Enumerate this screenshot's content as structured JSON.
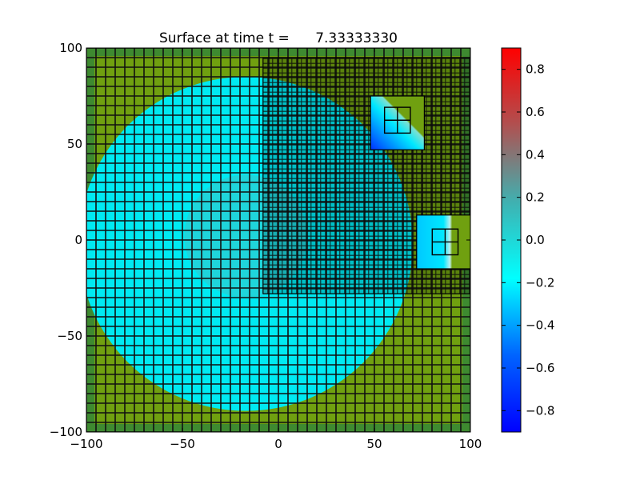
{
  "chart_data": {
    "type": "heatmap",
    "title": "Surface at time t =      7.33333330",
    "xlabel": "",
    "ylabel": "",
    "xlim": [
      -100,
      100
    ],
    "ylim": [
      -100,
      100
    ],
    "x_ticks": [
      -100,
      -50,
      0,
      50,
      100
    ],
    "y_ticks": [
      -100,
      -50,
      0,
      50,
      100
    ],
    "x_tick_labels": [
      "−100",
      "−50",
      "0",
      "50",
      "100"
    ],
    "y_tick_labels": [
      "−100",
      "−50",
      "0",
      "50",
      "100"
    ],
    "grid": false,
    "cells_shown": true,
    "background_color": "#70a010",
    "outer_band_color": "#3e8a30",
    "colorbar": {
      "vmin": -0.9,
      "vmax": 0.9,
      "ticks": [
        0.8,
        0.6,
        0.4,
        0.2,
        0.0,
        -0.2,
        -0.4,
        -0.6,
        -0.8
      ],
      "tick_labels": [
        "0.8",
        "0.6",
        "0.4",
        "0.2",
        "0.0",
        "−0.2",
        "−0.4",
        "−0.6",
        "−0.8"
      ],
      "colormap_stops": [
        "#0000ff",
        "#0064ff",
        "#00ffff",
        "#40b0b0",
        "#b05050",
        "#ff0000"
      ]
    },
    "regions": [
      {
        "name": "disk",
        "shape": "circle",
        "center": [
          -17,
          -2
        ],
        "radius": 87,
        "value": -0.08,
        "color": "#00eaf2"
      },
      {
        "name": "center-disk",
        "shape": "circle",
        "center": [
          -17,
          2
        ],
        "radius": 32,
        "value": 0.12,
        "color": "#38c2c8"
      },
      {
        "name": "refined-patch",
        "shape": "rect",
        "x": [
          -8,
          100
        ],
        "y": [
          -28,
          95
        ],
        "level": 2
      },
      {
        "name": "inset-upper",
        "shape": "rect",
        "x": [
          48,
          76
        ],
        "y": [
          47,
          75
        ],
        "level": 3
      },
      {
        "name": "inset-lower",
        "shape": "rect",
        "x": [
          72,
          100
        ],
        "y": [
          -15,
          13
        ],
        "level": 3
      }
    ]
  }
}
